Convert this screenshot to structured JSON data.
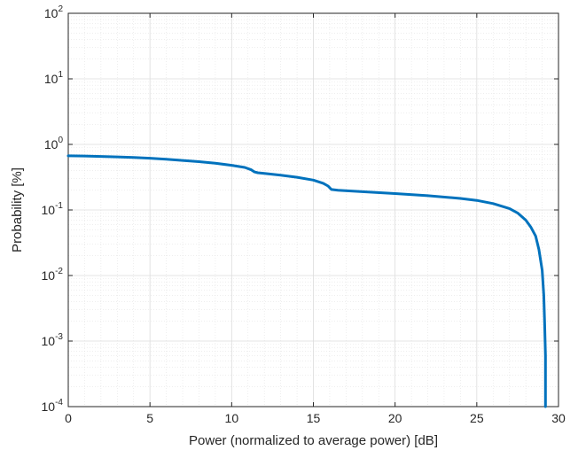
{
  "chart_data": {
    "type": "line",
    "title": "",
    "xlabel": "Power (normalized to average power) [dB]",
    "ylabel": "Probability [%]",
    "xlim": [
      0,
      30
    ],
    "ylim": [
      0.0001,
      100
    ],
    "yscale": "log",
    "grid": true,
    "minor_grid": true,
    "x_ticks": [
      0,
      5,
      10,
      15,
      20,
      25,
      30
    ],
    "x_tick_labels": [
      "0",
      "5",
      "10",
      "15",
      "20",
      "25",
      "30"
    ],
    "y_tick_base": "10",
    "y_tick_exponents": [
      "2",
      "1",
      "0",
      "-1",
      "-2",
      "-3",
      "-4"
    ],
    "y_tick_values": [
      100,
      10,
      1,
      0.1,
      0.01,
      0.001,
      0.0001
    ],
    "line_color": "#0072bd",
    "series": [
      {
        "x": [
          0,
          1,
          2,
          3,
          4,
          5,
          6,
          7,
          8,
          9,
          10,
          10.8,
          11.2,
          11.4,
          11.6,
          12,
          13,
          14,
          15,
          15.6,
          15.9,
          16.1,
          16.5,
          18,
          20,
          22,
          24,
          25,
          26,
          27,
          27.5,
          28,
          28.3,
          28.6,
          28.8,
          29.0,
          29.1,
          29.15,
          29.2,
          29.2
        ],
        "y": [
          0.67,
          0.665,
          0.655,
          0.645,
          0.63,
          0.615,
          0.595,
          0.57,
          0.545,
          0.515,
          0.48,
          0.445,
          0.41,
          0.38,
          0.37,
          0.36,
          0.34,
          0.315,
          0.285,
          0.255,
          0.232,
          0.205,
          0.2,
          0.19,
          0.178,
          0.165,
          0.15,
          0.14,
          0.125,
          0.105,
          0.09,
          0.07,
          0.055,
          0.04,
          0.025,
          0.012,
          0.005,
          0.002,
          0.0006,
          0.0001
        ]
      }
    ]
  }
}
